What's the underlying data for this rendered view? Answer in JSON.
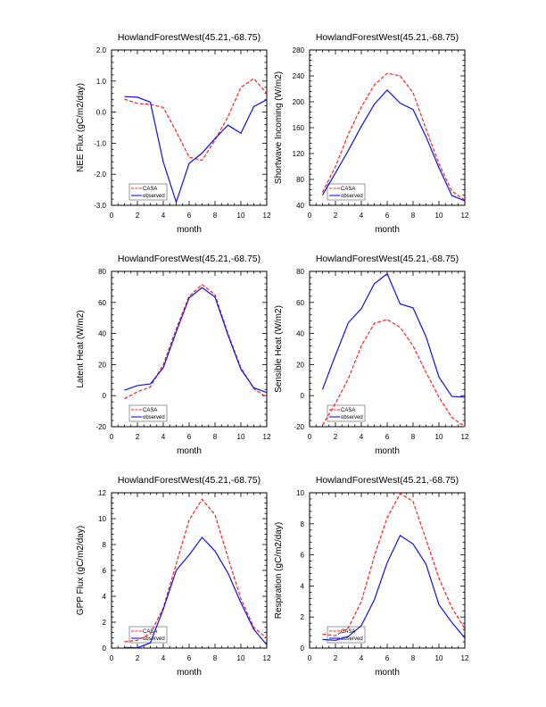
{
  "colors": {
    "casa": "#ff2020",
    "observed": "#1010ee"
  },
  "legend": [
    "CASA",
    "observed"
  ],
  "chart_data": [
    {
      "type": "line",
      "title": "HowlandForestWest(45.21,-68.75)",
      "xlabel": "month",
      "ylabel": "NEE Flux (gC/m2/day)",
      "xlim": [
        0,
        12
      ],
      "ylim": [
        -3.0,
        2.0
      ],
      "xticks": [
        0,
        2,
        4,
        6,
        8,
        10,
        12
      ],
      "yticks": [
        -3.0,
        -2.0,
        -1.0,
        0.0,
        1.0,
        2.0
      ],
      "ytick_labels": [
        "-3.0",
        "-2.0",
        "-1.0",
        "0.0",
        "1.0",
        "2.0"
      ],
      "x": [
        1,
        2,
        3,
        4,
        5,
        6,
        7,
        8,
        9,
        10,
        11,
        12
      ],
      "legend_position": "bottom-left",
      "series": [
        {
          "name": "CASA",
          "values": [
            0.42,
            0.28,
            0.25,
            0.15,
            -0.62,
            -1.45,
            -1.55,
            -0.9,
            -0.15,
            0.8,
            1.08,
            0.6
          ]
        },
        {
          "name": "observed",
          "values": [
            0.5,
            0.48,
            0.32,
            -1.6,
            -2.9,
            -1.65,
            -1.32,
            -0.85,
            -0.42,
            -0.68,
            0.18,
            0.4
          ]
        }
      ]
    },
    {
      "type": "line",
      "title": "HowlandForestWest(45.21,-68.75)",
      "xlabel": "month",
      "ylabel": "Shortwave Incoming (W/m2)",
      "xlim": [
        0,
        12
      ],
      "ylim": [
        40,
        280
      ],
      "xticks": [
        0,
        2,
        4,
        6,
        8,
        10,
        12
      ],
      "yticks": [
        40,
        80,
        120,
        160,
        200,
        240,
        280
      ],
      "ytick_labels": [
        "40",
        "80",
        "120",
        "160",
        "200",
        "240",
        "280"
      ],
      "x": [
        1,
        2,
        3,
        4,
        5,
        6,
        7,
        8,
        9,
        10,
        11,
        12
      ],
      "legend_position": "bottom-left",
      "series": [
        {
          "name": "CASA",
          "values": [
            60,
            100,
            150,
            192,
            226,
            244,
            240,
            214,
            158,
            104,
            62,
            48
          ]
        },
        {
          "name": "observed",
          "values": [
            56,
            90,
            125,
            162,
            196,
            218,
            198,
            188,
            146,
            98,
            55,
            47
          ]
        }
      ]
    },
    {
      "type": "line",
      "title": "HowlandForestWest(45.21,-68.75)",
      "xlabel": "month",
      "ylabel": "Latent Heat (W/m2)",
      "xlim": [
        0,
        12
      ],
      "ylim": [
        -20,
        80
      ],
      "xticks": [
        0,
        2,
        4,
        6,
        8,
        10,
        12
      ],
      "yticks": [
        -20,
        0,
        20,
        40,
        60,
        80
      ],
      "ytick_labels": [
        "-20",
        "0",
        "20",
        "40",
        "60",
        "80"
      ],
      "x": [
        1,
        2,
        3,
        4,
        5,
        6,
        7,
        8,
        9,
        10,
        11,
        12
      ],
      "legend_position": "bottom-left",
      "series": [
        {
          "name": "CASA",
          "values": [
            -2,
            2.5,
            5.5,
            20,
            43,
            64,
            71.5,
            65,
            40,
            18,
            4.5,
            -1
          ]
        },
        {
          "name": "observed",
          "values": [
            3.5,
            6.5,
            7.5,
            18,
            41,
            63,
            69.5,
            63.5,
            39,
            17,
            5,
            2
          ]
        }
      ]
    },
    {
      "type": "line",
      "title": "HowlandForestWest(45.21,-68.75)",
      "xlabel": "month",
      "ylabel": "Sensible Heat (W/m2)",
      "xlim": [
        0,
        12
      ],
      "ylim": [
        -20,
        80
      ],
      "xticks": [
        0,
        2,
        4,
        6,
        8,
        10,
        12
      ],
      "yticks": [
        -20,
        0,
        20,
        40,
        60,
        80
      ],
      "ytick_labels": [
        "-20",
        "0",
        "20",
        "40",
        "60",
        "80"
      ],
      "x": [
        1,
        2,
        3,
        4,
        5,
        6,
        7,
        8,
        9,
        10,
        11,
        12
      ],
      "legend_position": "bottom-left",
      "series": [
        {
          "name": "CASA",
          "values": [
            -19,
            -5,
            11,
            32,
            46.5,
            49,
            44,
            32,
            15,
            -1,
            -14,
            -20
          ]
        },
        {
          "name": "observed",
          "values": [
            4,
            26,
            47,
            56,
            72,
            78.5,
            59,
            56.5,
            38,
            12,
            -0.5,
            -1
          ]
        }
      ]
    },
    {
      "type": "line",
      "title": "HowlandForestWest(45.21,-68.75)",
      "xlabel": "month",
      "ylabel": "GPP Flux (gC/m2/day)",
      "xlim": [
        0,
        12
      ],
      "ylim": [
        0,
        12
      ],
      "xticks": [
        0,
        2,
        4,
        6,
        8,
        10,
        12
      ],
      "yticks": [
        0,
        2,
        4,
        6,
        8,
        10,
        12
      ],
      "ytick_labels": [
        "0",
        "2",
        "4",
        "6",
        "8",
        "10",
        "12"
      ],
      "x": [
        1,
        2,
        3,
        4,
        5,
        6,
        7,
        8,
        9,
        10,
        11,
        12
      ],
      "legend_position": "bottom-left",
      "series": [
        {
          "name": "CASA",
          "values": [
            0.5,
            0.6,
            1.1,
            3.1,
            6.5,
            9.9,
            11.5,
            10.3,
            7.0,
            3.8,
            1.6,
            0.75
          ]
        },
        {
          "name": "observed",
          "values": [
            0.05,
            0.03,
            0.4,
            3.0,
            6.0,
            7.2,
            8.55,
            7.5,
            5.8,
            3.5,
            1.45,
            0.25
          ]
        }
      ]
    },
    {
      "type": "line",
      "title": "HowlandForestWest(45.21,-68.75)",
      "xlabel": "month",
      "ylabel": "Respiration (gC/m2/day)",
      "xlim": [
        0,
        12
      ],
      "ylim": [
        0,
        10
      ],
      "xticks": [
        0,
        2,
        4,
        6,
        8,
        10,
        12
      ],
      "yticks": [
        0,
        2,
        4,
        6,
        8,
        10
      ],
      "ytick_labels": [
        "0",
        "2",
        "4",
        "6",
        "8",
        "10"
      ],
      "x": [
        1,
        2,
        3,
        4,
        5,
        6,
        7,
        8,
        9,
        10,
        11,
        12
      ],
      "legend_position": "bottom-left",
      "series": [
        {
          "name": "CASA",
          "values": [
            0.9,
            0.8,
            1.3,
            3.0,
            5.9,
            8.4,
            9.95,
            9.45,
            7.0,
            4.5,
            2.6,
            1.25
          ]
        },
        {
          "name": "observed",
          "values": [
            0.55,
            0.5,
            0.75,
            1.45,
            3.1,
            5.5,
            7.25,
            6.7,
            5.4,
            2.8,
            1.65,
            0.65
          ]
        }
      ]
    }
  ]
}
